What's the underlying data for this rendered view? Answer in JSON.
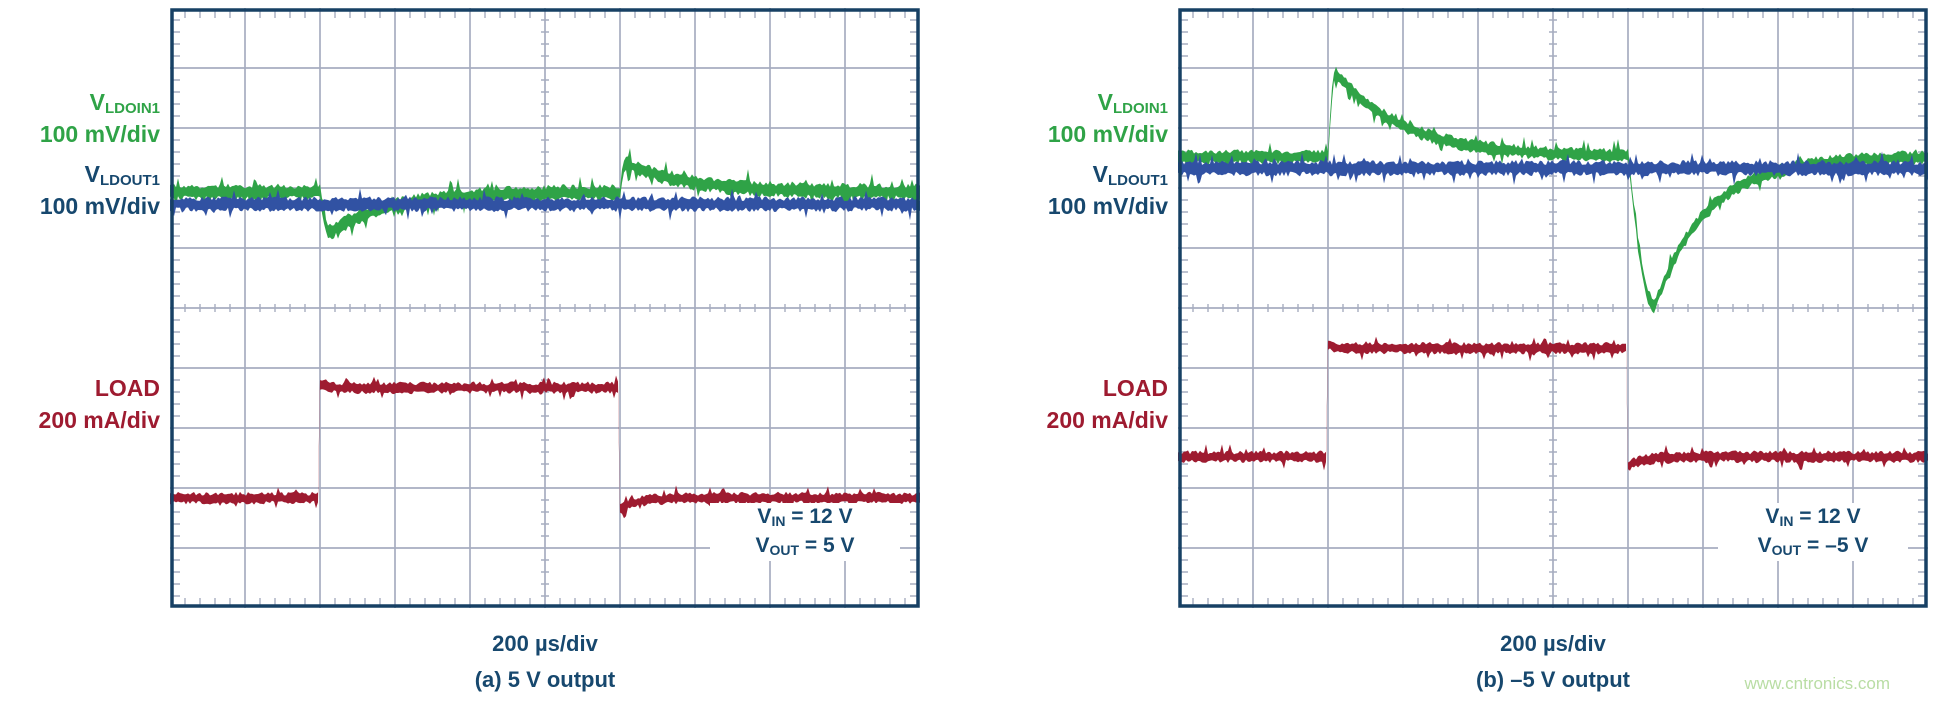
{
  "figure": {
    "background": "#FFFFFF"
  },
  "colors": {
    "green": "#2FA347",
    "blue": "#3152A3",
    "red": "#9E1B30",
    "navy": "#17486E",
    "border": "#174064",
    "grid": "#A7ADC0"
  },
  "watermark": {
    "text": "www.cntronics.com",
    "color": "#B9DDA4"
  },
  "panels": [
    {
      "channels": [
        {
          "label": "V",
          "sub": "LDOIN1",
          "scale": "100 mV/div",
          "color_key": "green"
        },
        {
          "label": "V",
          "sub": "LDOUT1",
          "scale": "100 mV/div",
          "color_key": "navy"
        },
        {
          "label": "LOAD",
          "sub": "",
          "scale": "200 mA/div",
          "color_key": "red"
        }
      ],
      "annotation_lines": [
        {
          "pre": "V",
          "sub": "IN",
          "post": " = 12 V"
        },
        {
          "pre": "V",
          "sub": "OUT",
          "post": " = 5 V"
        }
      ],
      "xlabel": "200 µs/div",
      "caption": "(a) 5 V output"
    },
    {
      "channels": [
        {
          "label": "V",
          "sub": "LDOIN1",
          "scale": "100 mV/div",
          "color_key": "green"
        },
        {
          "label": "V",
          "sub": "LDOUT1",
          "scale": "100 mV/div",
          "color_key": "navy"
        },
        {
          "label": "LOAD",
          "sub": "",
          "scale": "200 mA/div",
          "color_key": "red"
        }
      ],
      "annotation_lines": [
        {
          "pre": "V",
          "sub": "IN",
          "post": " = 12 V"
        },
        {
          "pre": "V",
          "sub": "OUT",
          "post": " = –5 V"
        }
      ],
      "xlabel": "200 µs/div",
      "caption": "(b) –5 V output"
    }
  ],
  "chart_data": [
    {
      "type": "line",
      "instrument": "oscilloscope",
      "title": "(a) 5 V output",
      "xlabel": "200 µs/div",
      "time_per_div": "200 µs",
      "x_total_divisions": 10,
      "y_total_divisions": 10,
      "grid": true,
      "annotation": [
        "VIN = 12 V",
        "VOUT = 5 V"
      ],
      "series": [
        {
          "name": "V_LDOIN1",
          "color_key": "green",
          "scale": "100 mV/div",
          "baseline_div": 3.07,
          "noise_halfwidth_div": 0.115,
          "events": [
            {
              "t_div": 2.0,
              "amplitude_div": 0.68,
              "attack_div": 0.12,
              "recovery_tau_div": 0.8,
              "reading": "dip ≈ −70 mV at load step"
            },
            {
              "t_div": 6.0,
              "amplitude_div": -0.48,
              "attack_div": 0.08,
              "recovery_tau_div": 0.85,
              "reading": "overshoot ≈ +50 mV at load release"
            }
          ]
        },
        {
          "name": "V_LDOUT1",
          "color_key": "blue",
          "scale": "100 mV/div",
          "baseline_div": 3.27,
          "noise_halfwidth_div": 0.105,
          "events": []
        },
        {
          "name": "LOAD",
          "color_key": "red",
          "scale": "200 mA/div",
          "baseline_div": 8.17,
          "noise_halfwidth_div": 0.085,
          "step": {
            "on_div": 2.0,
            "off_div": 6.0,
            "high_div": 6.33,
            "undershoot_div": 0.18
          },
          "reading": "load step ≈ +370 mA from t=2 div to t=6 div"
        }
      ]
    },
    {
      "type": "line",
      "instrument": "oscilloscope",
      "title": "(b) –5 V output",
      "xlabel": "200 µs/div",
      "time_per_div": "200 µs",
      "x_total_divisions": 10,
      "y_total_divisions": 10,
      "grid": true,
      "annotation": [
        "VIN = 12 V",
        "VOUT = −5 V"
      ],
      "series": [
        {
          "name": "V_LDOIN1",
          "color_key": "green",
          "scale": "100 mV/div",
          "baseline_div": 2.48,
          "noise_halfwidth_div": 0.1,
          "events": [
            {
              "t_div": 2.0,
              "amplitude_div": -1.4,
              "attack_div": 0.1,
              "recovery_tau_div": 0.9,
              "reading": "spike ≈ +140 mV at load step"
            },
            {
              "t_div": 6.0,
              "amplitude_div": 2.52,
              "attack_div": 0.35,
              "recovery_tau_div": 0.7,
              "reading": "dip ≈ −250 mV at load release"
            }
          ]
        },
        {
          "name": "V_LDOUT1",
          "color_key": "blue",
          "scale": "100 mV/div",
          "baseline_div": 2.67,
          "noise_halfwidth_div": 0.11,
          "events": []
        },
        {
          "name": "LOAD",
          "color_key": "red",
          "scale": "200 mA/div",
          "baseline_div": 7.48,
          "noise_halfwidth_div": 0.085,
          "step": {
            "on_div": 2.0,
            "off_div": 6.0,
            "high_div": 5.67,
            "undershoot_div": 0.15
          },
          "reading": "load step ≈ +360 mA from t=2 div to t=6 div"
        }
      ]
    }
  ]
}
